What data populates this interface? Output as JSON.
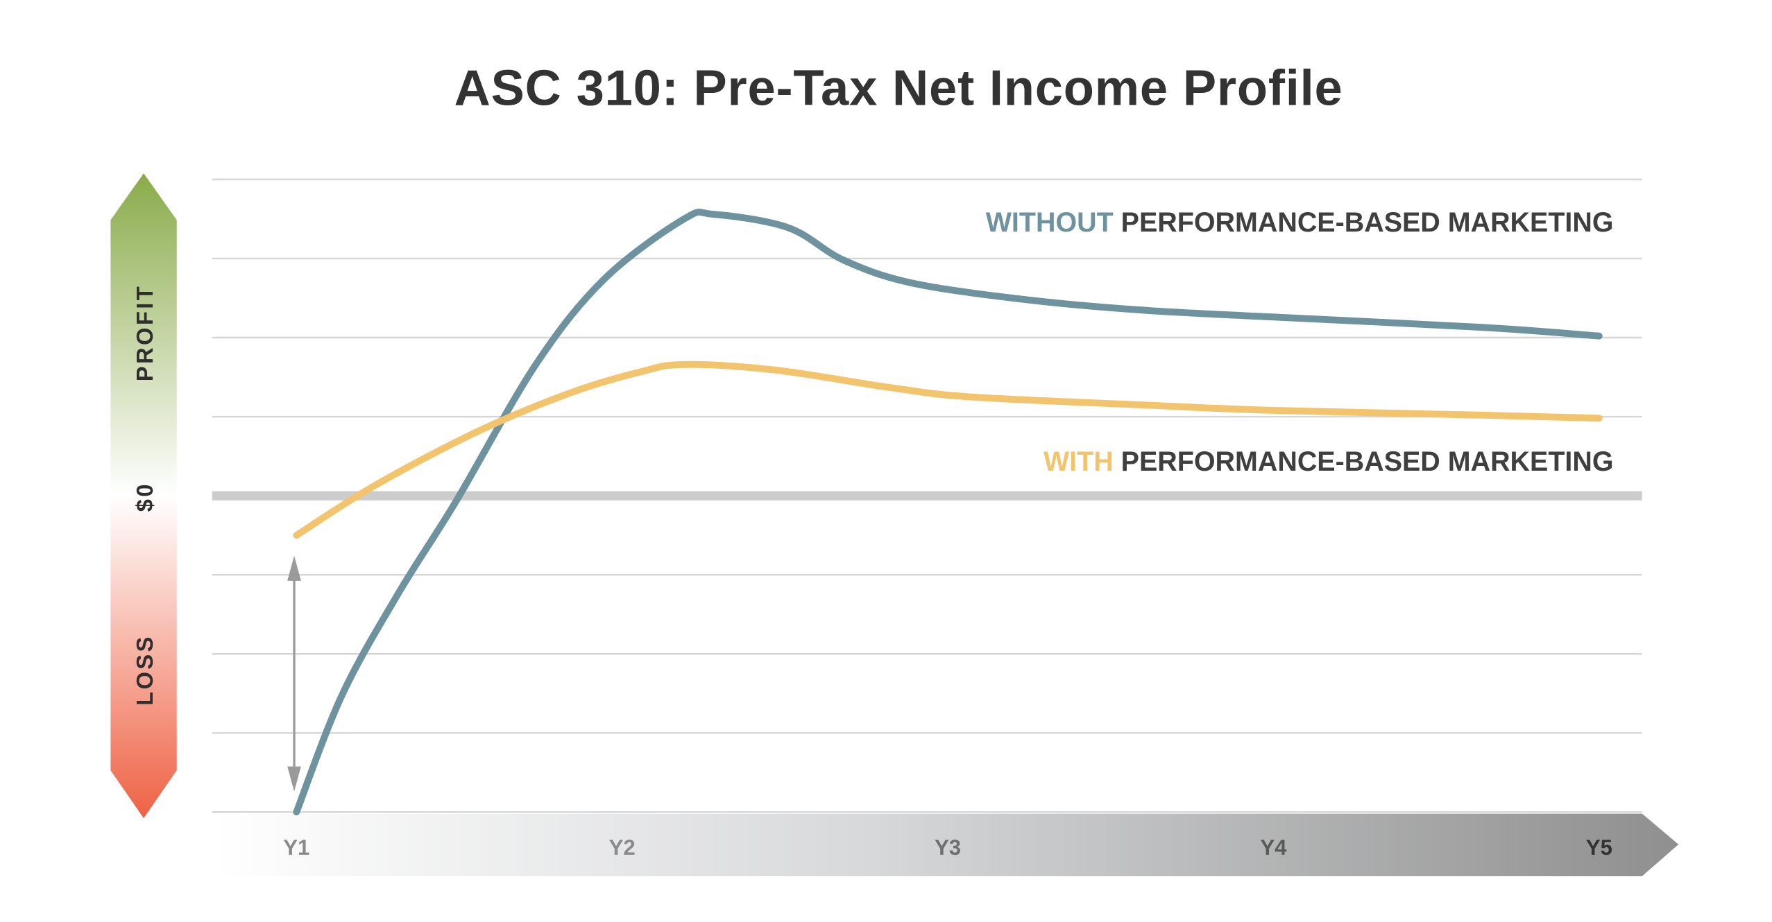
{
  "chart_data": {
    "type": "line",
    "title": "ASC 310: Pre-Tax Net Income Profile",
    "xlabel": "",
    "ylabel": "",
    "categories": [
      "Y1",
      "Y2",
      "Y3",
      "Y4",
      "Y5"
    ],
    "side_labels": {
      "top": "PROFIT",
      "middle": "$0",
      "bottom": "LOSS"
    },
    "xlim": [
      1,
      5
    ],
    "ylim": [
      -4,
      4
    ],
    "grid": true,
    "legend_placement": "inline-right",
    "series": [
      {
        "name": "WITHOUT PERFORMANCE-BASED MARKETING",
        "name_highlight": "WITHOUT",
        "name_rest": "PERFORMANCE-BASED MARKETING",
        "color": "#6e939e",
        "x": [
          1.0,
          1.14,
          1.315,
          1.49,
          1.735,
          1.945,
          2.19,
          2.28,
          2.51,
          2.68,
          2.89,
          3.24,
          3.59,
          4.0,
          4.64,
          5.0
        ],
        "values": [
          -4.0,
          -2.52,
          -1.22,
          -0.07,
          1.66,
          2.74,
          3.5,
          3.56,
          3.39,
          2.98,
          2.69,
          2.48,
          2.35,
          2.26,
          2.13,
          2.02
        ]
      },
      {
        "name": "WITH PERFORMANCE-BASED MARKETING",
        "name_highlight": "WITH",
        "name_rest": "PERFORMANCE-BASED MARKETING",
        "color": "#f2c46e",
        "x": [
          1.0,
          1.245,
          1.56,
          1.84,
          2.05,
          2.19,
          2.47,
          2.82,
          3.07,
          3.59,
          4.0,
          4.64,
          5.0
        ],
        "values": [
          -0.5,
          0.14,
          0.82,
          1.3,
          1.56,
          1.66,
          1.59,
          1.37,
          1.25,
          1.15,
          1.08,
          1.02,
          0.98
        ]
      }
    ],
    "annotations": [
      {
        "type": "double-arrow",
        "x": 1.0,
        "from": -4.0,
        "to": -0.5
      }
    ]
  },
  "colors": {
    "grid": "#d6d6d6",
    "zero_line": "#cccccc",
    "profit": "#8aab4a",
    "loss": "#ee6244",
    "arrow": "#9a9a9a",
    "text": "#333333"
  }
}
